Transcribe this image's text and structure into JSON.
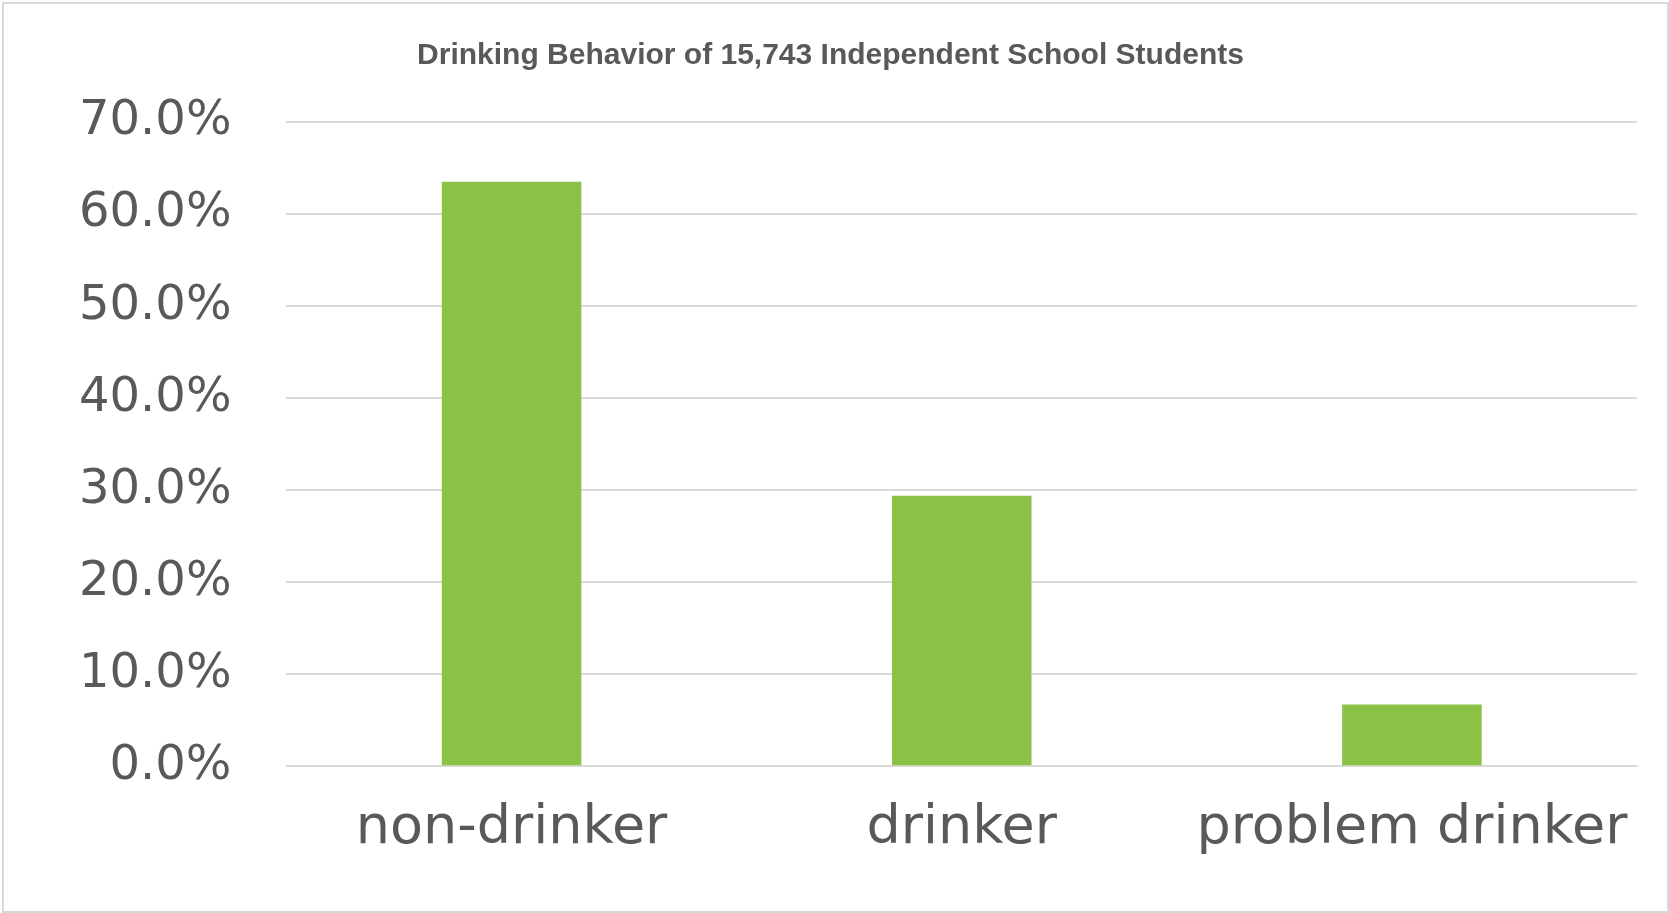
{
  "chart_data": {
    "type": "bar",
    "title": "Drinking Behavior of 15,743 Independent School Students",
    "categories": [
      "non-drinker",
      "drinker",
      "problem drinker"
    ],
    "values": [
      63.5,
      29.4,
      6.7
    ],
    "color": "#8bc145",
    "ylim": [
      0,
      70
    ],
    "yticks": [
      {
        "value": 0,
        "label": "0.0%"
      },
      {
        "value": 10,
        "label": "10.0%"
      },
      {
        "value": 20,
        "label": "20.0%"
      },
      {
        "value": 30,
        "label": "30.0%"
      },
      {
        "value": 40,
        "label": "40.0%"
      },
      {
        "value": 50,
        "label": "50.0%"
      },
      {
        "value": 60,
        "label": "60.0%"
      },
      {
        "value": 70,
        "label": "70.0%"
      }
    ],
    "grid": "y"
  }
}
